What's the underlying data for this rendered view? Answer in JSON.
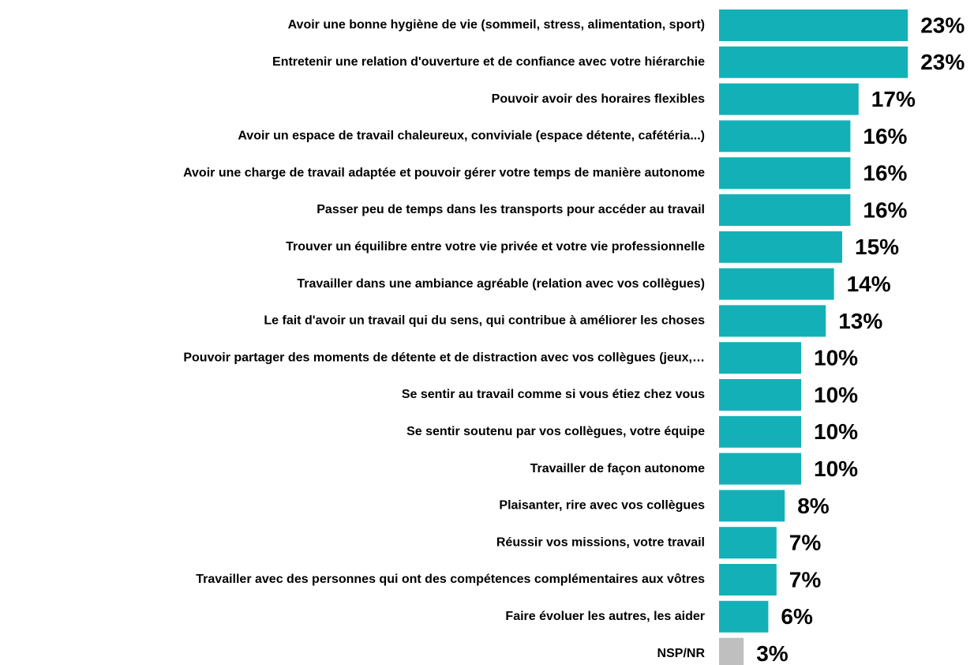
{
  "chart_data": {
    "type": "hbar",
    "categories": [
      "Avoir une bonne hygiène de vie (sommeil, stress, alimentation, sport)",
      "Entretenir une relation d'ouverture et de confiance avec votre hiérarchie",
      "Pouvoir avoir des horaires flexibles",
      "Avoir un espace de travail chaleureux, conviviale (espace détente, cafétéria...)",
      "Avoir une charge de travail adaptée et pouvoir gérer votre temps de manière autonome",
      "Passer peu de temps dans les transports pour accéder au travail",
      "Trouver un équilibre entre votre vie privée et votre vie professionnelle",
      "Travailler dans une ambiance agréable (relation avec vos collègues)",
      "Le fait d'avoir un travail qui du sens, qui contribue à améliorer les choses",
      "Pouvoir partager des moments de détente et de distraction avec vos collègues (jeux,…",
      "Se sentir au travail comme si vous étiez chez vous",
      "Se sentir soutenu par vos collègues, votre équipe",
      "Travailler de façon autonome",
      "Plaisanter, rire avec vos collègues",
      "Réussir vos missions, votre travail",
      "Travailler avec des personnes qui ont des compétences complémentaires aux vôtres",
      "Faire évoluer les autres, les aider",
      "NSP/NR"
    ],
    "values": [
      23,
      23,
      17,
      16,
      16,
      16,
      15,
      14,
      13,
      10,
      10,
      10,
      10,
      8,
      7,
      7,
      6,
      3
    ],
    "value_labels": [
      "23%",
      "23%",
      "17%",
      "16%",
      "16%",
      "16%",
      "15%",
      "14%",
      "13%",
      "10%",
      "10%",
      "10%",
      "10%",
      "8%",
      "7%",
      "7%",
      "6%",
      "3%"
    ],
    "colors": [
      "#13b1b7",
      "#13b1b7",
      "#13b1b7",
      "#13b1b7",
      "#13b1b7",
      "#13b1b7",
      "#13b1b7",
      "#13b1b7",
      "#13b1b7",
      "#13b1b7",
      "#13b1b7",
      "#13b1b7",
      "#13b1b7",
      "#13b1b7",
      "#13b1b7",
      "#13b1b7",
      "#13b1b7",
      "#bfbfbf"
    ]
  }
}
